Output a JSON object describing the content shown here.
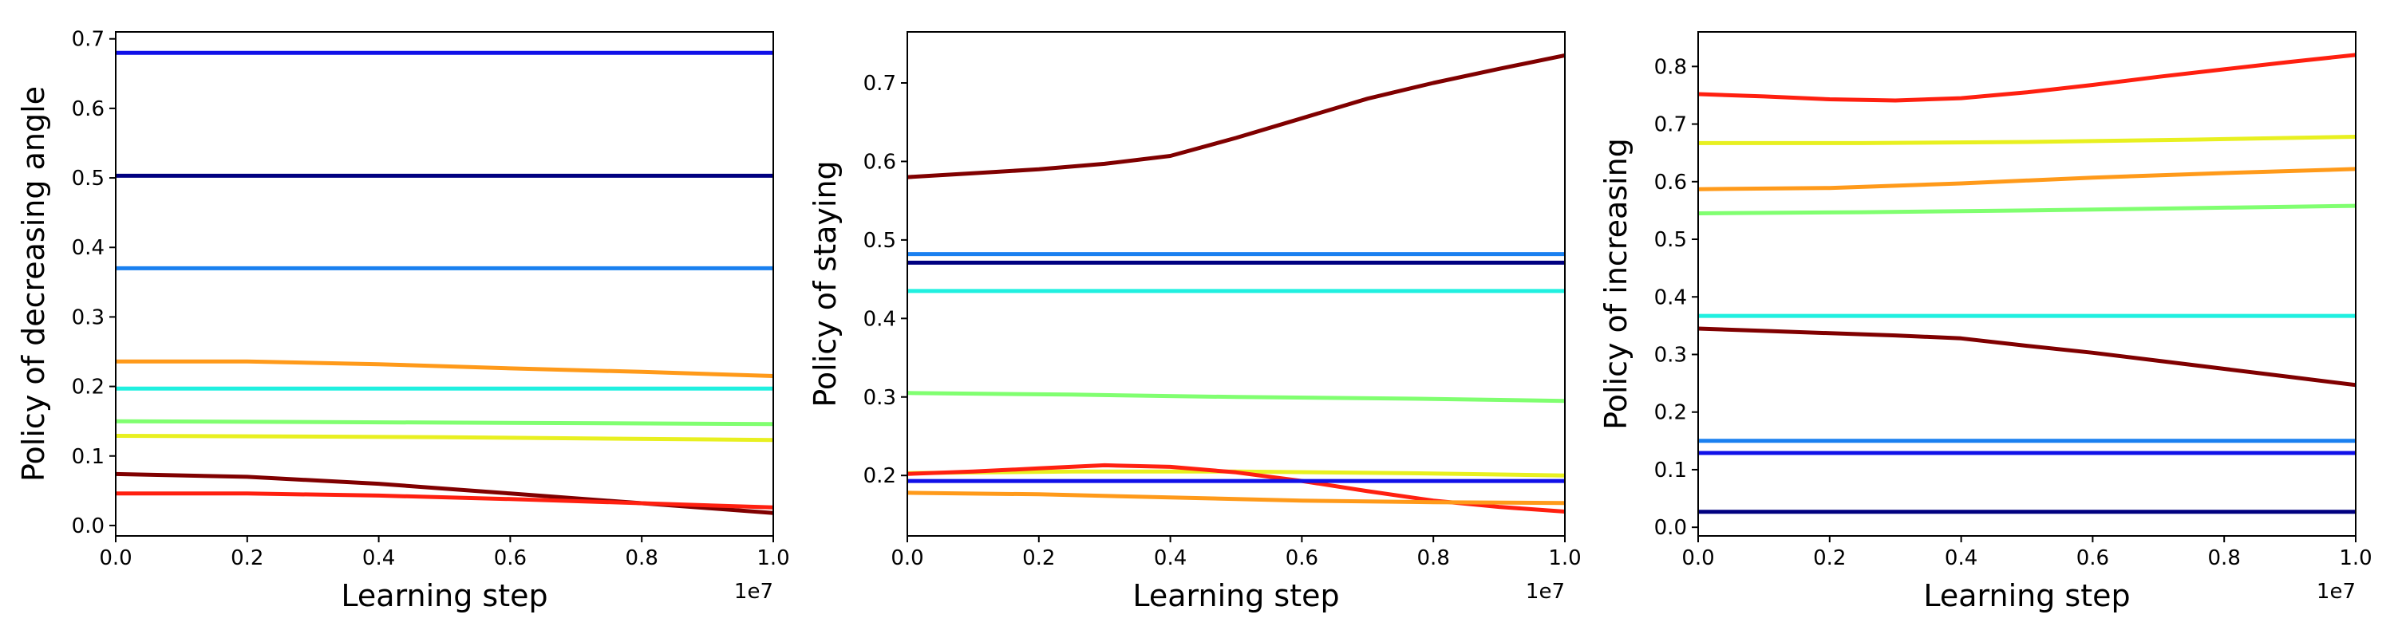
{
  "chart_data": [
    {
      "type": "line",
      "xlabel": "Learning step",
      "ylabel": "Policy of decreasing angle",
      "x_offset_label": "1e7",
      "xlim": [
        0,
        1.0
      ],
      "ylim": [
        -0.015,
        0.71
      ],
      "xticks": [
        "0.0",
        "0.2",
        "0.4",
        "0.6",
        "0.8",
        "1.0"
      ],
      "yticks": [
        "0.0",
        "0.1",
        "0.2",
        "0.3",
        "0.4",
        "0.5",
        "0.6",
        "0.7"
      ],
      "grid": false,
      "series": [
        {
          "color": "#1010e8",
          "x": [
            0,
            0.25,
            0.5,
            0.75,
            1.0
          ],
          "y": [
            0.68,
            0.68,
            0.68,
            0.68,
            0.68
          ]
        },
        {
          "color": "#000080",
          "x": [
            0,
            0.25,
            0.5,
            0.75,
            1.0
          ],
          "y": [
            0.503,
            0.503,
            0.503,
            0.503,
            0.503
          ]
        },
        {
          "color": "#1a80f0",
          "x": [
            0,
            0.25,
            0.5,
            0.75,
            1.0
          ],
          "y": [
            0.37,
            0.37,
            0.37,
            0.37,
            0.37
          ]
        },
        {
          "color": "#ff9a1a",
          "x": [
            0,
            0.2,
            0.4,
            0.6,
            0.8,
            1.0
          ],
          "y": [
            0.236,
            0.236,
            0.232,
            0.226,
            0.221,
            0.215
          ]
        },
        {
          "color": "#20f0e0",
          "x": [
            0,
            0.25,
            0.5,
            0.75,
            1.0
          ],
          "y": [
            0.197,
            0.197,
            0.197,
            0.197,
            0.197
          ]
        },
        {
          "color": "#80ff70",
          "x": [
            0,
            0.25,
            0.5,
            0.75,
            1.0
          ],
          "y": [
            0.15,
            0.149,
            0.148,
            0.147,
            0.146
          ]
        },
        {
          "color": "#e8f020",
          "x": [
            0,
            0.25,
            0.5,
            0.75,
            1.0
          ],
          "y": [
            0.129,
            0.128,
            0.127,
            0.125,
            0.123
          ]
        },
        {
          "color": "#800000",
          "x": [
            0,
            0.2,
            0.4,
            0.6,
            0.8,
            1.0
          ],
          "y": [
            0.074,
            0.07,
            0.06,
            0.046,
            0.032,
            0.018
          ]
        },
        {
          "color": "#ff2010",
          "x": [
            0,
            0.2,
            0.4,
            0.6,
            0.8,
            1.0
          ],
          "y": [
            0.046,
            0.046,
            0.043,
            0.038,
            0.032,
            0.026
          ]
        }
      ]
    },
    {
      "type": "line",
      "xlabel": "Learning step",
      "ylabel": "Policy of staying",
      "x_offset_label": "1e7",
      "xlim": [
        0,
        1.0
      ],
      "ylim": [
        0.123,
        0.765
      ],
      "xticks": [
        "0.0",
        "0.2",
        "0.4",
        "0.6",
        "0.8",
        "1.0"
      ],
      "yticks": [
        "0.2",
        "0.3",
        "0.4",
        "0.5",
        "0.6",
        "0.7"
      ],
      "grid": false,
      "series": [
        {
          "color": "#800000",
          "x": [
            0,
            0.1,
            0.2,
            0.3,
            0.4,
            0.5,
            0.6,
            0.7,
            0.8,
            0.9,
            1.0
          ],
          "y": [
            0.58,
            0.585,
            0.59,
            0.597,
            0.607,
            0.63,
            0.655,
            0.68,
            0.7,
            0.718,
            0.735
          ]
        },
        {
          "color": "#1a80f0",
          "x": [
            0,
            0.25,
            0.5,
            0.75,
            1.0
          ],
          "y": [
            0.482,
            0.482,
            0.482,
            0.482,
            0.482
          ]
        },
        {
          "color": "#000080",
          "x": [
            0,
            0.25,
            0.5,
            0.75,
            1.0
          ],
          "y": [
            0.471,
            0.471,
            0.471,
            0.471,
            0.471
          ]
        },
        {
          "color": "#20f0e0",
          "x": [
            0,
            0.25,
            0.5,
            0.75,
            1.0
          ],
          "y": [
            0.435,
            0.435,
            0.435,
            0.435,
            0.435
          ]
        },
        {
          "color": "#80ff70",
          "x": [
            0,
            0.25,
            0.5,
            0.75,
            1.0
          ],
          "y": [
            0.305,
            0.303,
            0.3,
            0.298,
            0.295
          ]
        },
        {
          "color": "#e8f020",
          "x": [
            0,
            0.25,
            0.5,
            0.75,
            1.0
          ],
          "y": [
            0.203,
            0.205,
            0.205,
            0.203,
            0.2
          ]
        },
        {
          "color": "#ff2010",
          "x": [
            0,
            0.1,
            0.2,
            0.3,
            0.4,
            0.5,
            0.6,
            0.7,
            0.8,
            0.9,
            1.0
          ],
          "y": [
            0.202,
            0.205,
            0.209,
            0.213,
            0.211,
            0.204,
            0.193,
            0.18,
            0.168,
            0.16,
            0.154
          ]
        },
        {
          "color": "#1010e8",
          "x": [
            0,
            0.25,
            0.5,
            0.75,
            1.0
          ],
          "y": [
            0.193,
            0.193,
            0.193,
            0.193,
            0.193
          ]
        },
        {
          "color": "#ff9a1a",
          "x": [
            0,
            0.2,
            0.4,
            0.6,
            0.8,
            1.0
          ],
          "y": [
            0.178,
            0.176,
            0.172,
            0.168,
            0.166,
            0.165
          ]
        }
      ]
    },
    {
      "type": "line",
      "xlabel": "Learning step",
      "ylabel": "Policy of increasing",
      "x_offset_label": "1e7",
      "xlim": [
        0,
        1.0
      ],
      "ylim": [
        -0.015,
        0.86
      ],
      "xticks": [
        "0.0",
        "0.2",
        "0.4",
        "0.6",
        "0.8",
        "1.0"
      ],
      "yticks": [
        "0.0",
        "0.1",
        "0.2",
        "0.3",
        "0.4",
        "0.5",
        "0.6",
        "0.7",
        "0.8"
      ],
      "grid": false,
      "series": [
        {
          "color": "#ff2010",
          "x": [
            0,
            0.1,
            0.2,
            0.3,
            0.4,
            0.5,
            0.6,
            0.7,
            0.8,
            0.9,
            1.0
          ],
          "y": [
            0.752,
            0.748,
            0.743,
            0.741,
            0.745,
            0.755,
            0.768,
            0.782,
            0.795,
            0.808,
            0.82
          ]
        },
        {
          "color": "#e8f020",
          "x": [
            0,
            0.25,
            0.5,
            0.75,
            1.0
          ],
          "y": [
            0.667,
            0.667,
            0.669,
            0.673,
            0.678
          ]
        },
        {
          "color": "#ff9a1a",
          "x": [
            0,
            0.2,
            0.4,
            0.6,
            0.8,
            1.0
          ],
          "y": [
            0.587,
            0.589,
            0.597,
            0.607,
            0.615,
            0.622
          ]
        },
        {
          "color": "#80ff70",
          "x": [
            0,
            0.25,
            0.5,
            0.75,
            1.0
          ],
          "y": [
            0.545,
            0.547,
            0.55,
            0.554,
            0.558
          ]
        },
        {
          "color": "#20f0e0",
          "x": [
            0,
            0.25,
            0.5,
            0.75,
            1.0
          ],
          "y": [
            0.367,
            0.367,
            0.367,
            0.367,
            0.367
          ]
        },
        {
          "color": "#800000",
          "x": [
            0,
            0.1,
            0.2,
            0.3,
            0.4,
            0.5,
            0.6,
            0.7,
            0.8,
            0.9,
            1.0
          ],
          "y": [
            0.345,
            0.341,
            0.337,
            0.333,
            0.328,
            0.315,
            0.303,
            0.289,
            0.275,
            0.261,
            0.247
          ]
        },
        {
          "color": "#1a80f0",
          "x": [
            0,
            0.25,
            0.5,
            0.75,
            1.0
          ],
          "y": [
            0.15,
            0.15,
            0.15,
            0.15,
            0.15
          ]
        },
        {
          "color": "#1010e8",
          "x": [
            0,
            0.25,
            0.5,
            0.75,
            1.0
          ],
          "y": [
            0.129,
            0.129,
            0.129,
            0.129,
            0.129
          ]
        },
        {
          "color": "#000080",
          "x": [
            0,
            0.25,
            0.5,
            0.75,
            1.0
          ],
          "y": [
            0.027,
            0.027,
            0.027,
            0.027,
            0.027
          ]
        }
      ]
    }
  ]
}
